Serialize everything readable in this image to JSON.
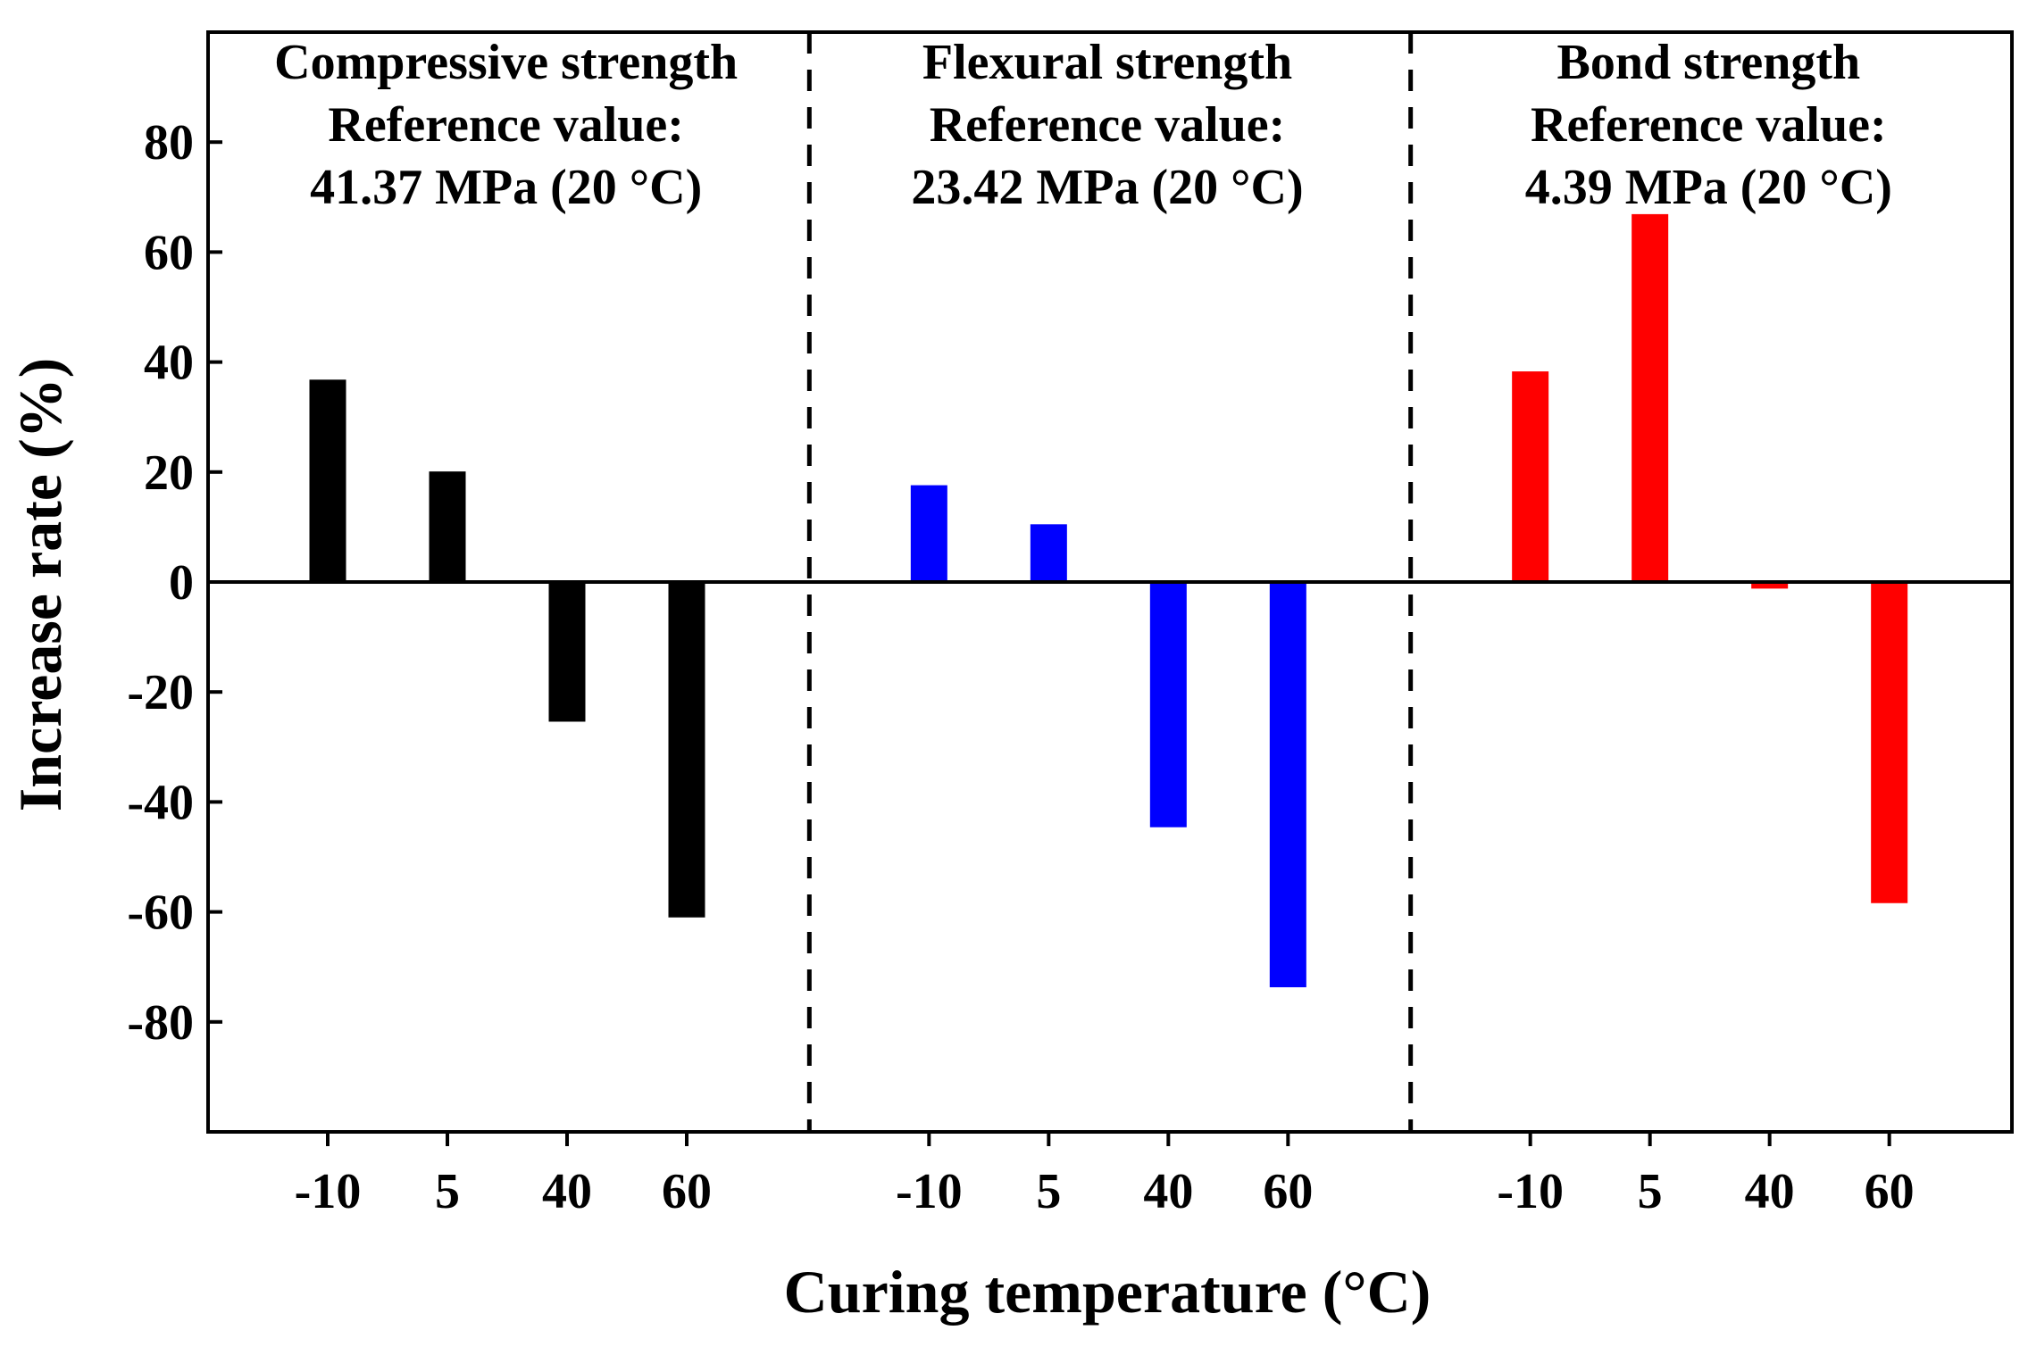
{
  "chart_data": {
    "type": "bar",
    "xlabel": "Curing temperature (°C)",
    "ylabel": "Increase rate (%)",
    "ylim": [
      -100,
      100
    ],
    "yticks": [
      "80",
      "60",
      "40",
      "20",
      "0",
      "-20",
      "-40",
      "-60",
      "-80"
    ],
    "categories": [
      "-10",
      "5",
      "40",
      "60"
    ],
    "panels": [
      {
        "title": "Compressive strength",
        "ref_label": "Reference value:",
        "ref_value": "41.37 MPa (20 °C)",
        "color": "#000000",
        "values": [
          36.8,
          20.1,
          -25.4,
          -61.0
        ]
      },
      {
        "title": "Flexural strength",
        "ref_label": "Reference value:",
        "ref_value": "23.42 MPa (20 °C)",
        "color": "#0000ff",
        "values": [
          17.6,
          10.5,
          -44.6,
          -73.7
        ]
      },
      {
        "title": "Bond strength",
        "ref_label": "Reference value:",
        "ref_value": "4.39 MPa (20 °C)",
        "color": "#ff0000",
        "values": [
          38.3,
          66.9,
          -1.2,
          -58.4
        ]
      }
    ]
  }
}
